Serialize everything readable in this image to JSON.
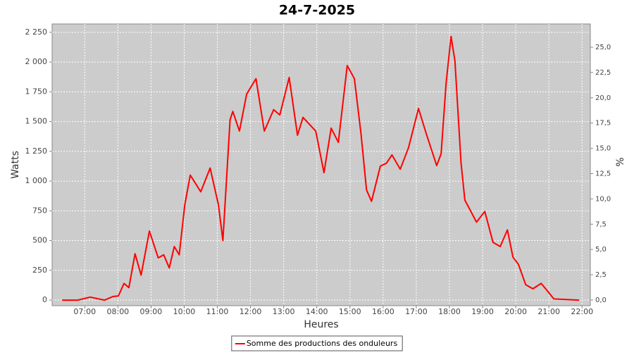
{
  "chart_data": {
    "type": "line",
    "title": "24-7-2025",
    "x_label": "Heures",
    "y_label": "Watts",
    "y2_label": "%",
    "x": [
      "06:19",
      "06:47",
      "07:10",
      "07:23",
      "07:36",
      "07:51",
      "08:01",
      "08:11",
      "08:20",
      "08:31",
      "08:42",
      "08:57",
      "09:13",
      "09:23",
      "09:33",
      "09:42",
      "09:51",
      "10:01",
      "10:11",
      "10:30",
      "10:47",
      "11:02",
      "11:10",
      "11:23",
      "11:28",
      "11:40",
      "11:53",
      "12:10",
      "12:25",
      "12:42",
      "12:53",
      "13:10",
      "13:25",
      "13:35",
      "13:58",
      "14:13",
      "14:26",
      "14:39",
      "14:55",
      "15:08",
      "15:20",
      "15:30",
      "15:39",
      "15:55",
      "16:06",
      "16:16",
      "16:31",
      "16:46",
      "17:04",
      "17:18",
      "17:37",
      "17:45",
      "17:54",
      "18:03",
      "18:10",
      "18:21",
      "18:28",
      "18:36",
      "18:49",
      "19:04",
      "19:19",
      "19:32",
      "19:45",
      "19:55",
      "20:05",
      "20:18",
      "20:31",
      "20:46",
      "20:56",
      "21:09",
      "21:55"
    ],
    "series": [
      {
        "name": "Somme des productions des onduleurs",
        "color": "#ff0000",
        "values": [
          0,
          0,
          25,
          12,
          0,
          30,
          35,
          140,
          105,
          390,
          210,
          580,
          355,
          380,
          270,
          450,
          380,
          800,
          1050,
          910,
          1110,
          800,
          500,
          1515,
          1585,
          1420,
          1730,
          1860,
          1420,
          1600,
          1555,
          1870,
          1385,
          1535,
          1420,
          1070,
          1445,
          1325,
          1970,
          1860,
          1395,
          925,
          830,
          1125,
          1150,
          1220,
          1100,
          1280,
          1610,
          1400,
          1130,
          1230,
          1825,
          2215,
          2010,
          1150,
          840,
          770,
          655,
          745,
          485,
          450,
          590,
          360,
          300,
          130,
          95,
          140,
          85,
          10,
          0
        ]
      }
    ],
    "xlim": [
      "06:01",
      "22:15"
    ],
    "xticks": [
      "07:00",
      "08:00",
      "09:00",
      "10:00",
      "11:00",
      "12:00",
      "13:00",
      "14:00",
      "15:00",
      "16:00",
      "17:00",
      "18:00",
      "19:00",
      "20:00",
      "21:00",
      "22:00"
    ],
    "ylim": [
      -47,
      2320
    ],
    "yticks": [
      0,
      250,
      500,
      750,
      {
        "value": 1000,
        "label": "1 000"
      },
      {
        "value": 1250,
        "label": "1 250"
      },
      {
        "value": 1500,
        "label": "1 500"
      },
      {
        "value": 1750,
        "label": "1 750"
      },
      {
        "value": 2000,
        "label": "2 000"
      },
      {
        "value": 2250,
        "label": "2 250"
      }
    ],
    "y2lim": [
      -0.56,
      27.3
    ],
    "y2ticks": [
      {
        "value": 0,
        "label": "0,0"
      },
      {
        "value": 2.5,
        "label": "2,5"
      },
      {
        "value": 5,
        "label": "5,0"
      },
      {
        "value": 7.5,
        "label": "7,5"
      },
      {
        "value": 10,
        "label": "10,0"
      },
      {
        "value": 12.5,
        "label": "12,5"
      },
      {
        "value": 15,
        "label": "15,0"
      },
      {
        "value": 17.5,
        "label": "17,5"
      },
      {
        "value": 20,
        "label": "20,0"
      },
      {
        "value": 22.5,
        "label": "22,5"
      },
      {
        "value": 25,
        "label": "25,0"
      }
    ],
    "grid": true,
    "legend": "bottom",
    "plot_background": "#cccccc"
  }
}
